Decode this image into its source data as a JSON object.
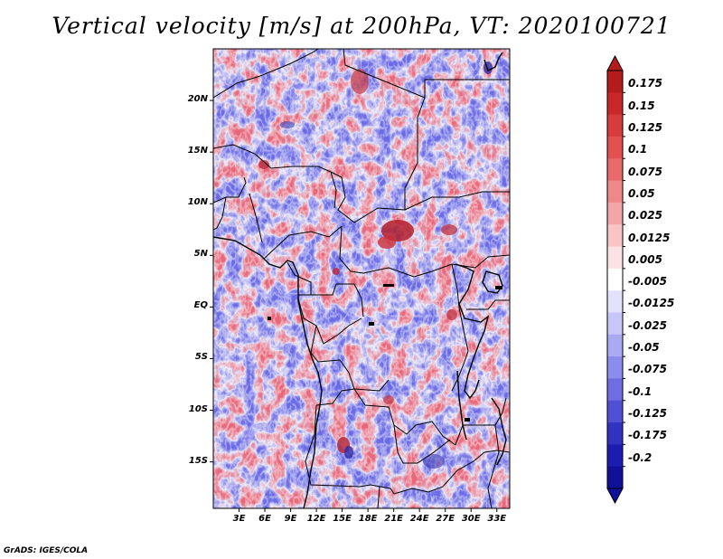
{
  "title": "Vertical velocity [m/s] at 200hPa, VT: 2020100721",
  "credit": "GrADS: IGES/COLA",
  "map": {
    "lat_ticks": [
      {
        "label": "20N",
        "value": 20
      },
      {
        "label": "15N",
        "value": 15
      },
      {
        "label": "10N",
        "value": 10
      },
      {
        "label": "5N",
        "value": 5
      },
      {
        "label": "EQ",
        "value": 0
      },
      {
        "label": "5S",
        "value": -5
      },
      {
        "label": "10S",
        "value": -10
      },
      {
        "label": "15S",
        "value": -15
      }
    ],
    "lon_ticks": [
      {
        "label": "3E",
        "value": 3
      },
      {
        "label": "6E",
        "value": 6
      },
      {
        "label": "9E",
        "value": 9
      },
      {
        "label": "12E",
        "value": 12
      },
      {
        "label": "15E",
        "value": 15
      },
      {
        "label": "18E",
        "value": 18
      },
      {
        "label": "21E",
        "value": 21
      },
      {
        "label": "24E",
        "value": 24
      },
      {
        "label": "27E",
        "value": 27
      },
      {
        "label": "30E",
        "value": 30
      },
      {
        "label": "33E",
        "value": 33
      }
    ],
    "lon_range": [
      0,
      34.5
    ],
    "lat_range": [
      -19.5,
      25
    ]
  },
  "colorbar": {
    "levels": [
      "0.175",
      "0.15",
      "0.125",
      "0.1",
      "0.075",
      "0.05",
      "0.025",
      "0.0125",
      "0.005",
      "-0.005",
      "-0.0125",
      "-0.025",
      "-0.05",
      "-0.075",
      "-0.1",
      "-0.125",
      "-0.175",
      "-0.2"
    ],
    "colors": [
      "#b41c1c",
      "#c82828",
      "#d73c3c",
      "#e35050",
      "#ea6a6a",
      "#ef8888",
      "#f4a6a6",
      "#f8c4c4",
      "#fce2e2",
      "#ffffff",
      "#e2e2fc",
      "#c6c6f8",
      "#aaaaf3",
      "#8c8cec",
      "#6e6ee2",
      "#5050d5",
      "#3232c2",
      "#1c1cb0",
      "#10109a"
    ]
  }
}
